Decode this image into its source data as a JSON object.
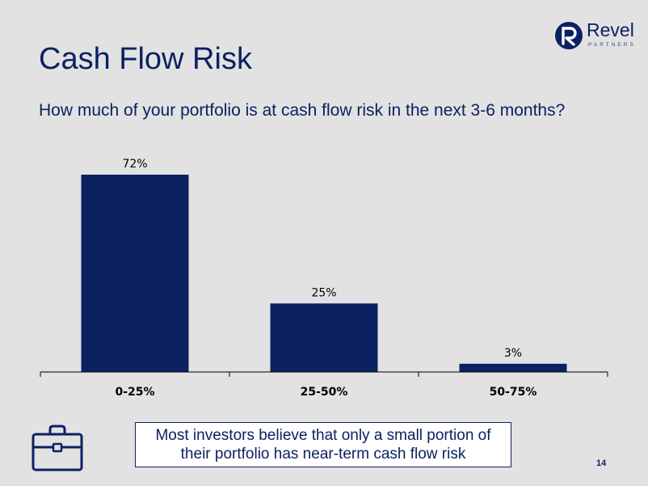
{
  "slide": {
    "title": "Cash Flow Risk",
    "subtitle": "How much of your portfolio is at cash flow risk in the next 3-6 months?",
    "page_number": "14"
  },
  "logo": {
    "name": "Revel",
    "tagline": "PARTNERS"
  },
  "callout": {
    "line1": "Most investors believe that only a small portion of",
    "line2": "their portfolio has near-term cash flow risk"
  },
  "colors": {
    "bar": "#0c2162",
    "text": "#0c2162",
    "background": "#e2e2e2",
    "axis": "#000000",
    "label": "#000000"
  },
  "icons": {
    "logo_mark": "revel-r-logo-icon",
    "briefcase": "briefcase-icon"
  },
  "chart_data": {
    "type": "bar",
    "title": "",
    "categories": [
      "0-25%",
      "25-50%",
      "50-75%"
    ],
    "values": [
      72,
      25,
      3
    ],
    "data_labels": [
      "72%",
      "25%",
      "3%"
    ],
    "xlabel": "",
    "ylabel": "",
    "ylim": [
      0,
      72
    ],
    "grid": false,
    "legend": "none"
  }
}
